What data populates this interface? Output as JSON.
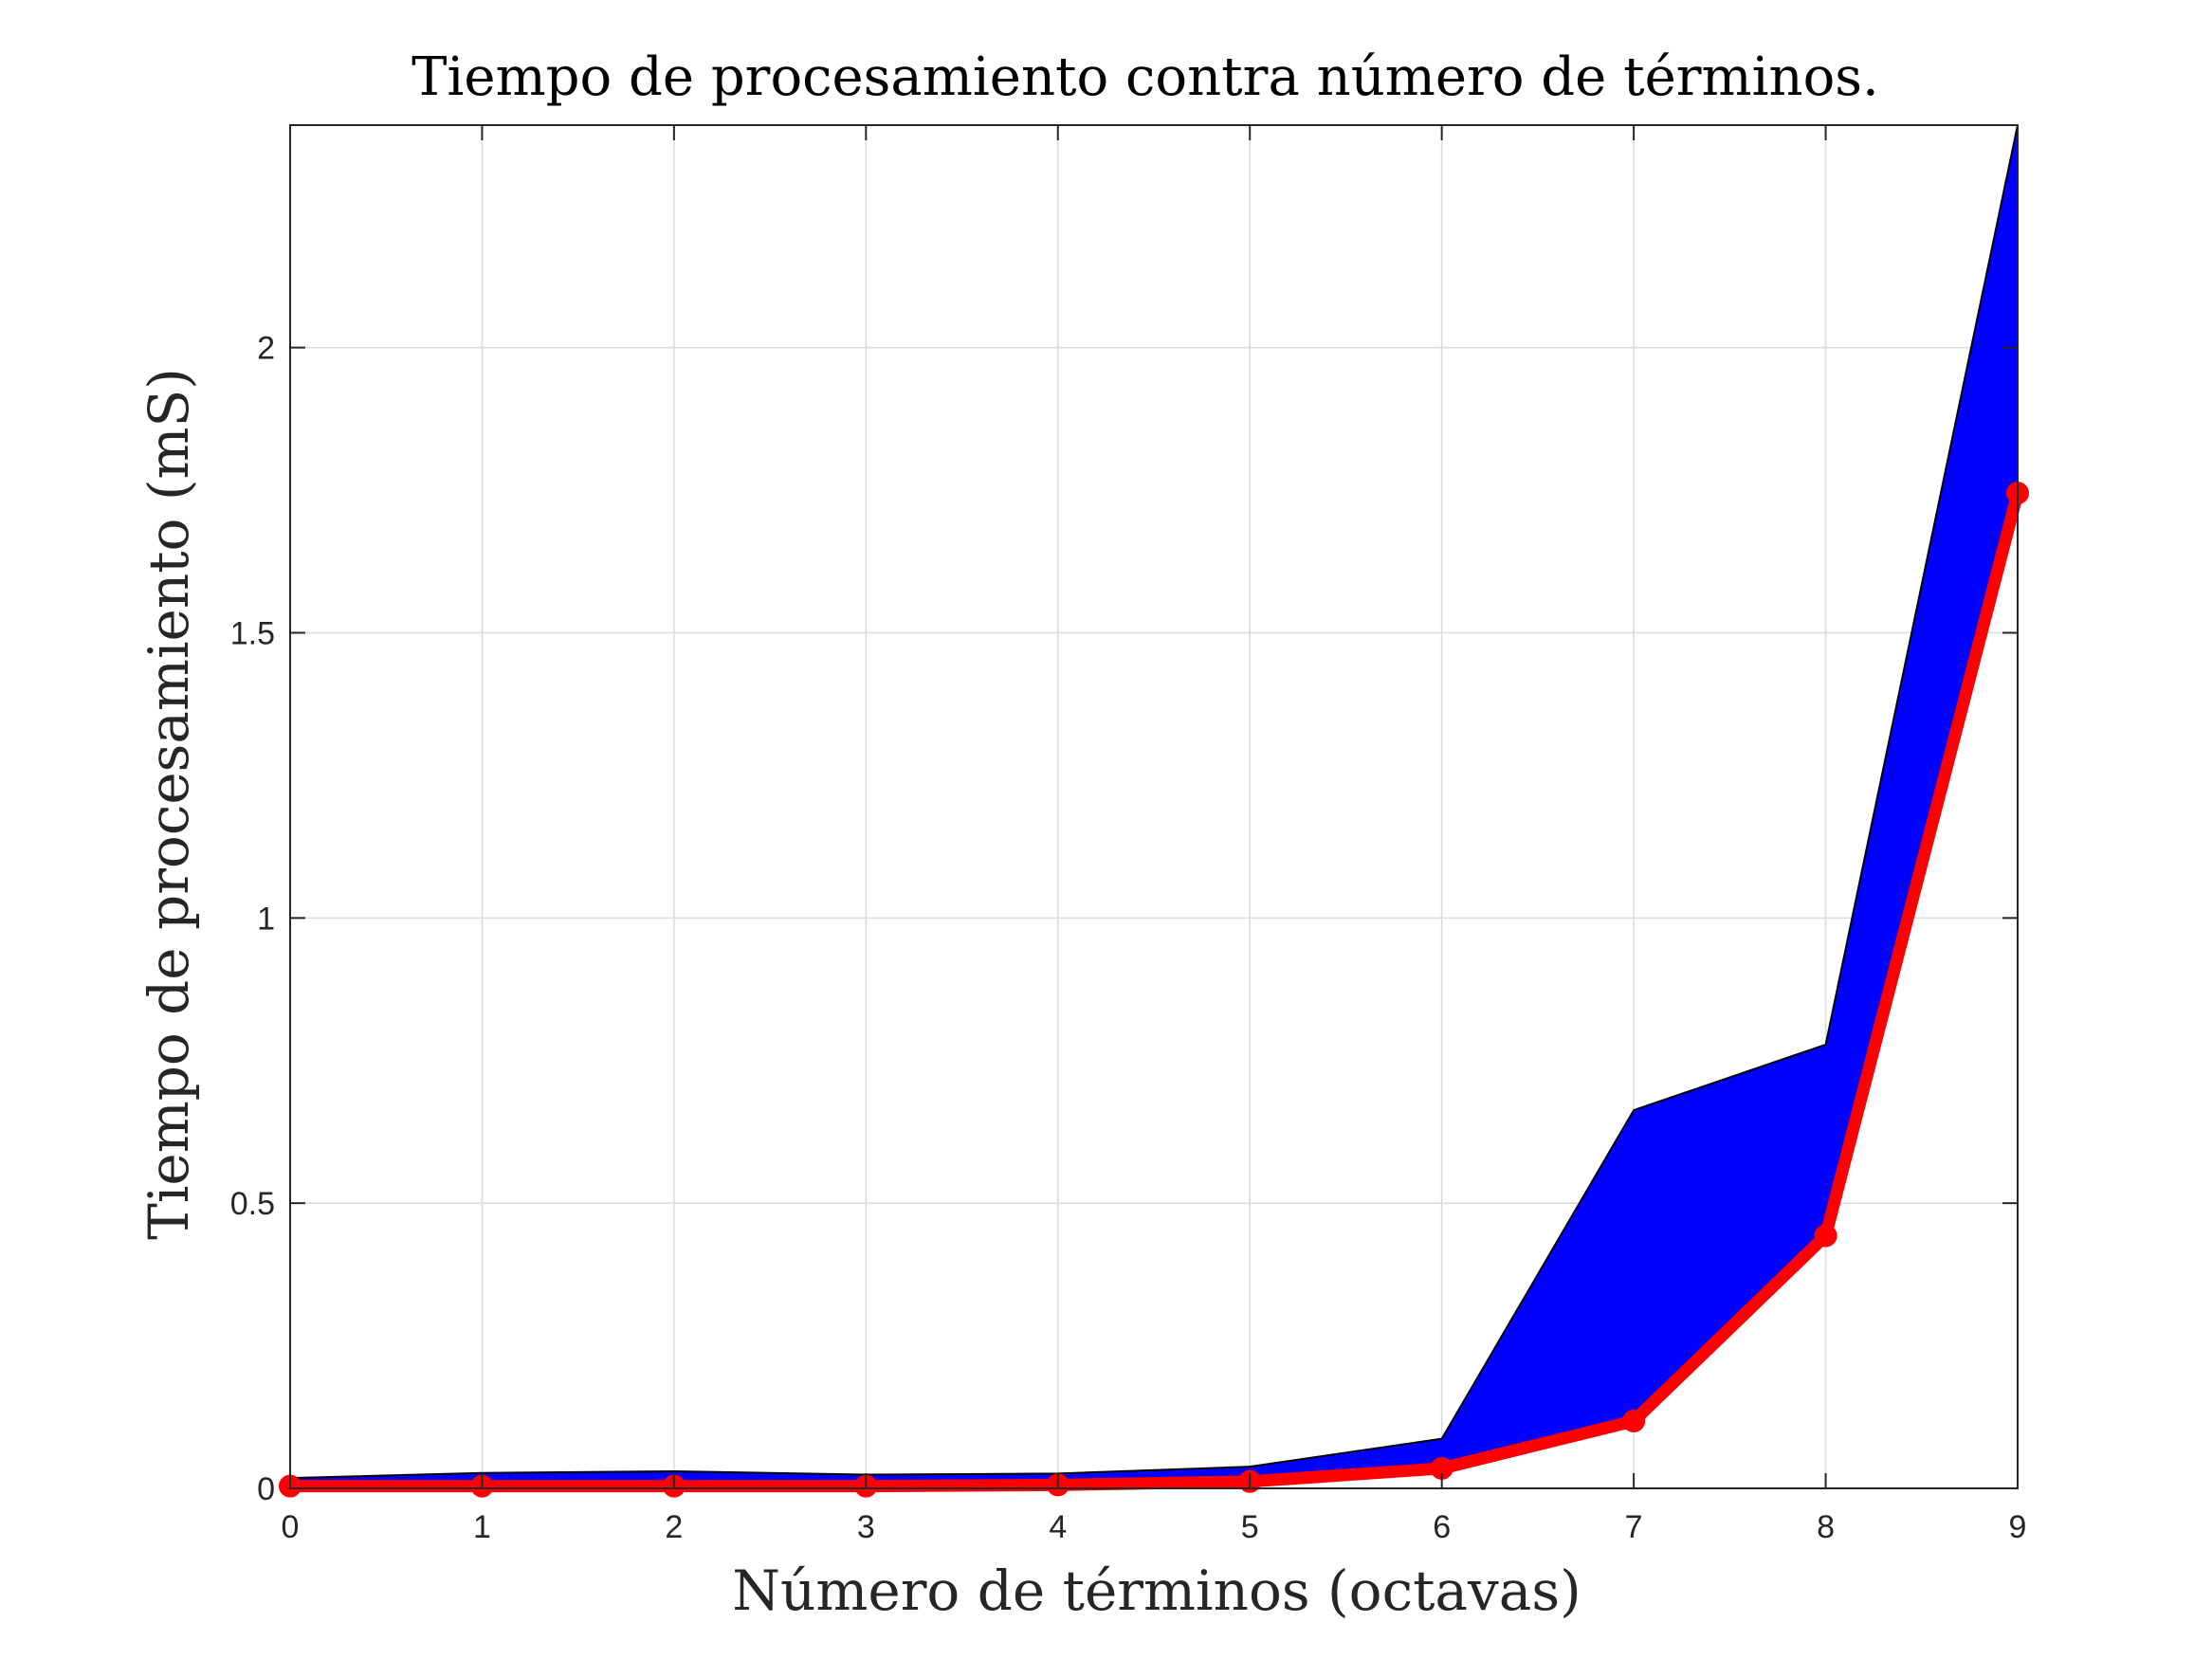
{
  "chart_data": {
    "type": "area",
    "title": "Tiempo de procesamiento contra número de términos.",
    "xlabel": "Número de términos (octavas)",
    "ylabel": "Tiempo de procesamiento (mS)",
    "xlim": [
      0,
      9
    ],
    "ylim": [
      0,
      2.39
    ],
    "x": [
      0,
      1,
      2,
      3,
      4,
      5,
      6,
      7,
      8,
      9
    ],
    "xticks": [
      0,
      1,
      2,
      3,
      4,
      5,
      6,
      7,
      8,
      9
    ],
    "yticks": [
      0,
      0.5,
      1,
      1.5,
      2
    ],
    "ytick_labels": [
      "0",
      "0.5",
      "1",
      "1.5",
      "2"
    ],
    "grid": true,
    "series": [
      {
        "kind": "band",
        "color": "#0000ff",
        "upper": [
          0.018,
          0.027,
          0.03,
          0.024,
          0.026,
          0.038,
          0.087,
          0.663,
          0.778,
          2.39
        ],
        "lower": [
          0.004,
          0.004,
          0.004,
          0.004,
          0.006,
          0.01,
          0.035,
          0.118,
          0.443,
          1.745
        ]
      },
      {
        "kind": "line",
        "color": "#ff0000",
        "marker": "circle",
        "values": [
          0.004,
          0.004,
          0.004,
          0.004,
          0.006,
          0.012,
          0.035,
          0.118,
          0.443,
          1.745
        ]
      }
    ]
  }
}
